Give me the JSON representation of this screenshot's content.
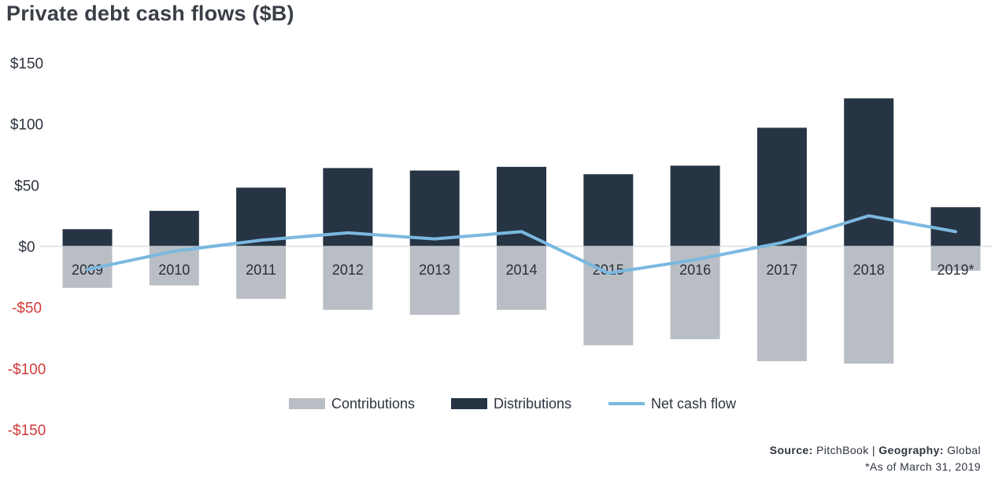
{
  "title": "Private debt cash flows ($B)",
  "source": {
    "source_label": "Source:",
    "source_value": "PitchBook",
    "separator": "|",
    "geography_label": "Geography:",
    "geography_value": "Global",
    "footnote": "*As of March 31, 2019"
  },
  "chart_data": {
    "type": "bar",
    "title": "Private debt cash flows ($B)",
    "categories": [
      "2009",
      "2010",
      "2011",
      "2012",
      "2013",
      "2014",
      "2015",
      "2016",
      "2017",
      "2018",
      "2019*"
    ],
    "series": [
      {
        "name": "Contributions",
        "type": "bar",
        "color": "#b9bec4",
        "values": [
          -34,
          -32,
          -43,
          -52,
          -56,
          -52,
          -81,
          -76,
          -94,
          -96,
          -20
        ]
      },
      {
        "name": "Distributions",
        "type": "bar",
        "color": "#263444",
        "values": [
          14,
          29,
          48,
          64,
          62,
          65,
          59,
          66,
          97,
          121,
          32
        ]
      },
      {
        "name": "Net cash flow",
        "type": "line",
        "color": "#7ab8e0",
        "values": [
          -19,
          -4,
          5,
          11,
          6,
          12,
          -22,
          -11,
          3,
          25,
          12
        ]
      }
    ],
    "yticks": [
      "$150",
      "$100",
      "$50",
      "$0",
      "-$50",
      "-$100",
      "-$150"
    ],
    "ytick_values": [
      150,
      100,
      50,
      0,
      -50,
      -100,
      -150
    ],
    "negative_tick_color": "#d23a3a",
    "ylim": [
      -150,
      150
    ],
    "grid": false,
    "legend": "bottom-center"
  }
}
